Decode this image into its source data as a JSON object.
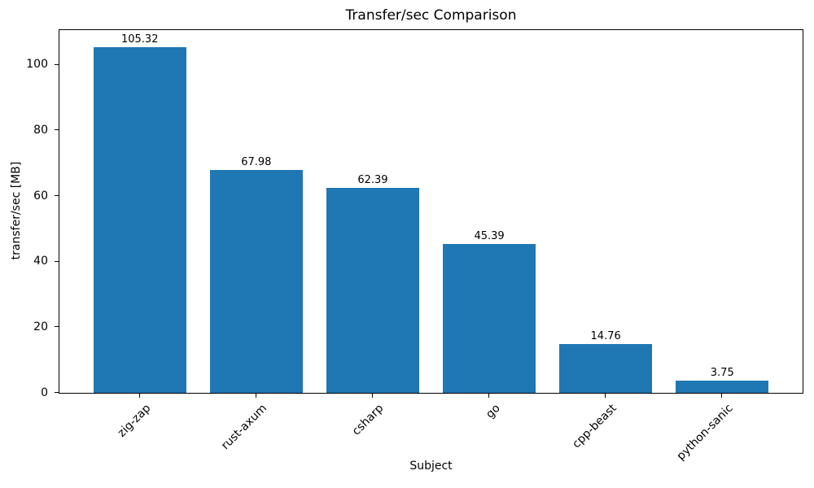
{
  "chart_data": {
    "type": "bar",
    "title": "Transfer/sec Comparison",
    "xlabel": "Subject",
    "ylabel": "transfer/sec [MB]",
    "categories": [
      "zig-zap",
      "rust-axum",
      "csharp",
      "go",
      "cpp-beast",
      "python-sanic"
    ],
    "values": [
      105.32,
      67.98,
      62.39,
      45.39,
      14.76,
      3.75
    ],
    "value_labels": [
      "105.32",
      "67.98",
      "62.39",
      "45.39",
      "14.76",
      "3.75"
    ],
    "yticks": [
      0,
      20,
      40,
      60,
      80,
      100
    ],
    "ylim": [
      0,
      110.6
    ],
    "bar_color": "#1f77b4",
    "grid": false,
    "legend": null,
    "tick_label_rotation_deg": 45
  }
}
